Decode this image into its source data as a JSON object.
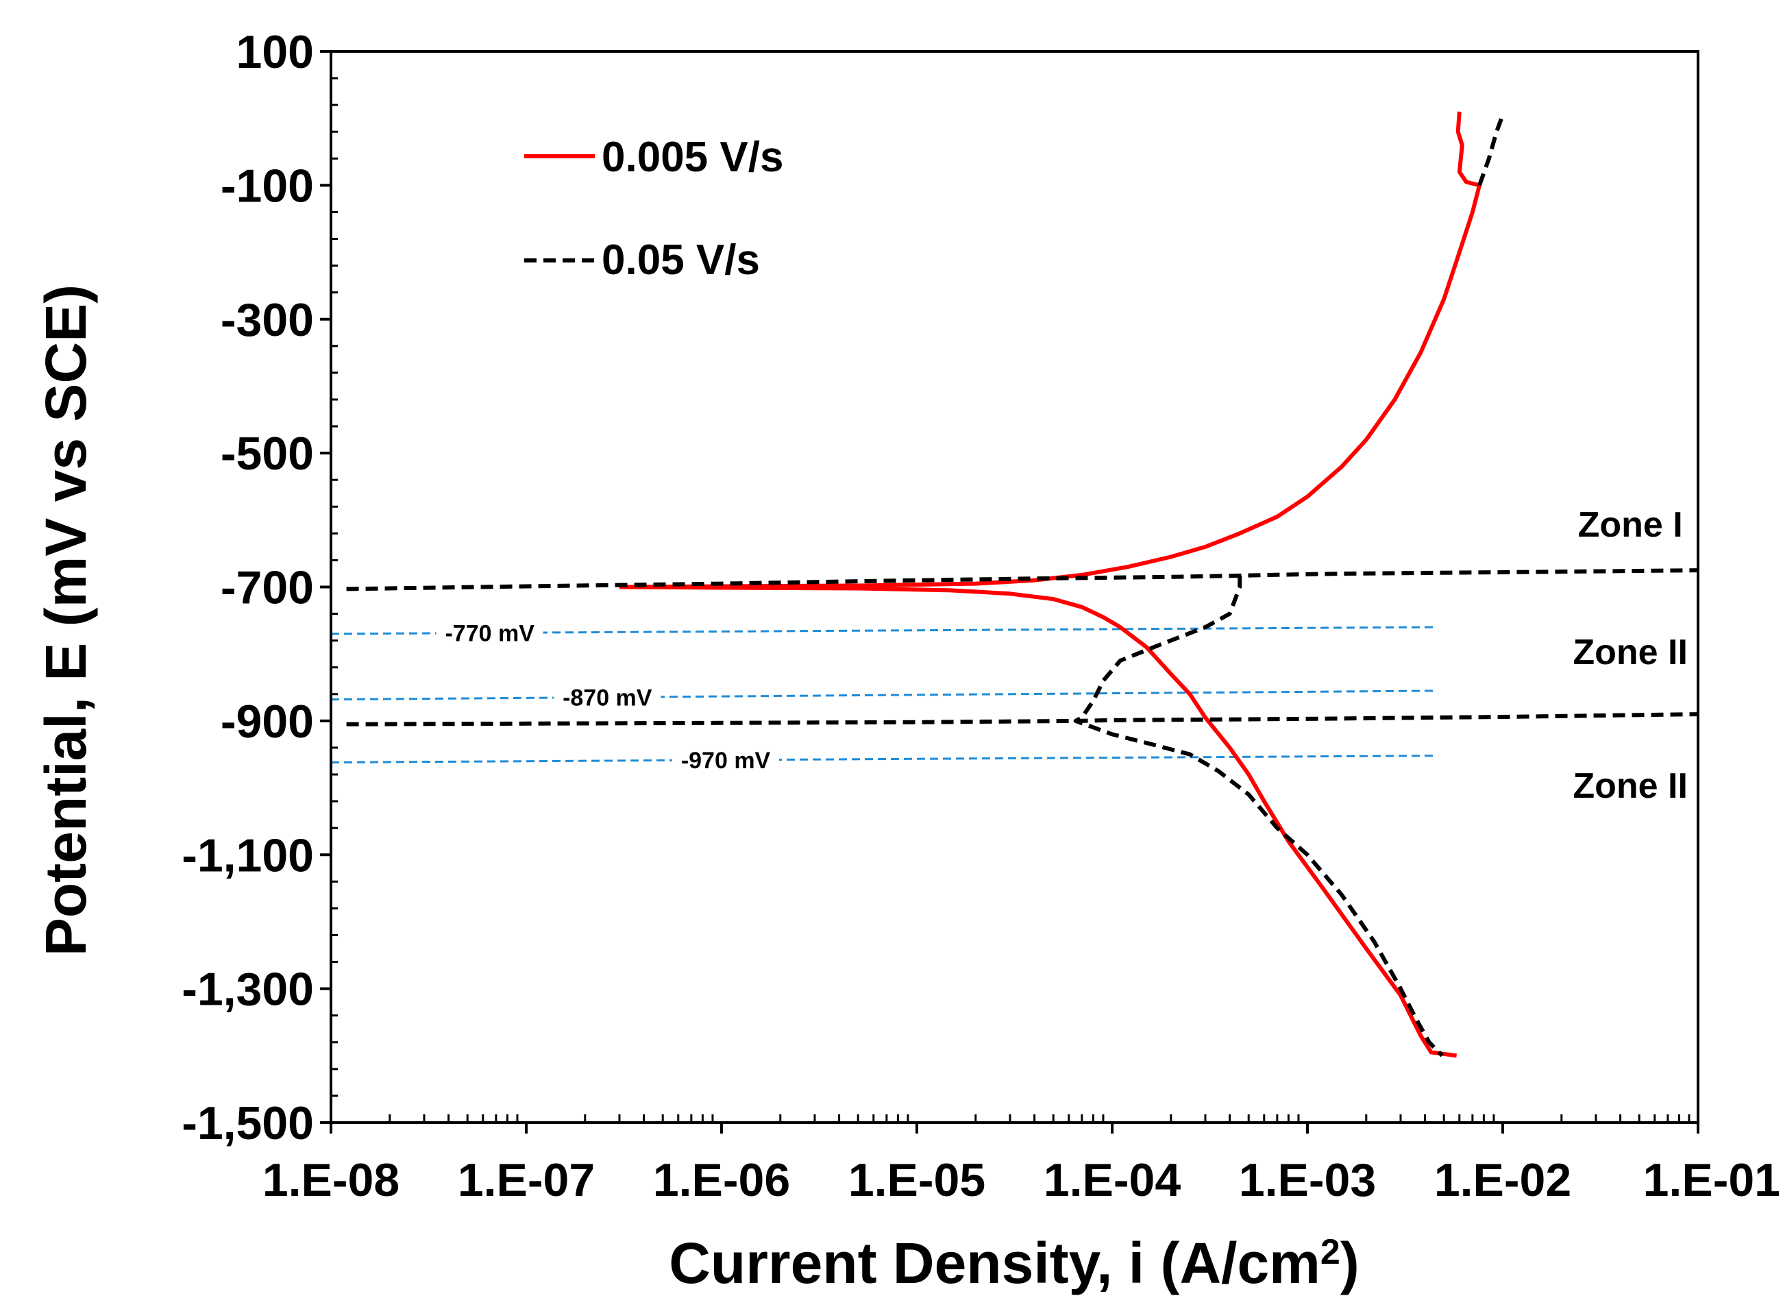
{
  "chart_data": {
    "type": "line",
    "xlabel": "Current Density, i (A/cm",
    "xlabel_sup": "2",
    "xlabel_end": ")",
    "ylabel": "Potential, E (mV vs SCE)",
    "x_scale": "log",
    "xlim": [
      1e-08,
      0.1
    ],
    "ylim": [
      -1500,
      100
    ],
    "x_tick_values": [
      1e-08,
      1e-07,
      1e-06,
      1e-05,
      0.0001,
      0.001,
      0.01,
      0.1
    ],
    "x_tick_labels": [
      "1.E-08",
      "1.E-07",
      "1.E-06",
      "1.E-05",
      "1.E-04",
      "1.E-03",
      "1.E-02",
      "1.E-01"
    ],
    "y_tick_values": [
      100,
      -100,
      -300,
      -500,
      -700,
      -900,
      -1100,
      -1300,
      -1500
    ],
    "y_tick_labels": [
      "100",
      "-100",
      "-300",
      "-500",
      "-700",
      "-900",
      "-1,100",
      "-1,300",
      "-1,500"
    ],
    "legend_position": "top-left",
    "series": [
      {
        "name": "0.005 V/s",
        "color": "#ff0000",
        "style": "solid",
        "points": [
          [
            3e-07,
            -700
          ],
          [
            1e-06,
            -701
          ],
          [
            5e-06,
            -702
          ],
          [
            1.5e-05,
            -705
          ],
          [
            3e-05,
            -710
          ],
          [
            5e-05,
            -718
          ],
          [
            7e-05,
            -730
          ],
          [
            9e-05,
            -745
          ],
          [
            0.00011,
            -760
          ],
          [
            0.00015,
            -790
          ],
          [
            0.0002,
            -830
          ],
          [
            0.00025,
            -860
          ],
          [
            0.0003,
            -895
          ],
          [
            0.0004,
            -940
          ],
          [
            0.0005,
            -980
          ],
          [
            0.0006,
            -1020
          ],
          [
            0.0008,
            -1080
          ],
          [
            0.0012,
            -1150
          ],
          [
            0.002,
            -1240
          ],
          [
            0.003,
            -1310
          ],
          [
            0.0038,
            -1370
          ],
          [
            0.0043,
            -1395
          ],
          [
            0.0058,
            -1400
          ],
          null,
          [
            3e-07,
            -700
          ],
          [
            1e-06,
            -699
          ],
          [
            5e-06,
            -698
          ],
          [
            2e-05,
            -695
          ],
          [
            4e-05,
            -690
          ],
          [
            7e-05,
            -682
          ],
          [
            0.00012,
            -670
          ],
          [
            0.0002,
            -655
          ],
          [
            0.0003,
            -640
          ],
          [
            0.00045,
            -620
          ],
          [
            0.0007,
            -595
          ],
          [
            0.001,
            -565
          ],
          [
            0.0015,
            -520
          ],
          [
            0.002,
            -480
          ],
          [
            0.0028,
            -420
          ],
          [
            0.0038,
            -350
          ],
          [
            0.005,
            -270
          ],
          [
            0.006,
            -200
          ],
          [
            0.007,
            -140
          ],
          [
            0.0076,
            -100
          ],
          [
            0.0065,
            -95
          ],
          [
            0.006,
            -80
          ],
          [
            0.0062,
            -40
          ],
          [
            0.0059,
            -20
          ],
          [
            0.006,
            10
          ]
        ]
      },
      {
        "name": "0.05 V/s",
        "color": "#000000",
        "style": "dashed",
        "points": [
          [
            1.2e-08,
            -703
          ],
          [
            1e-07,
            -699
          ],
          [
            1e-06,
            -695
          ],
          [
            1e-05,
            -690
          ],
          [
            5e-05,
            -687
          ],
          [
            0.0002,
            -685
          ],
          [
            0.00045,
            -683
          ],
          [
            0.00065,
            -682
          ],
          [
            0.0015,
            -680
          ],
          [
            0.01,
            -678
          ],
          [
            0.1,
            -675
          ],
          null,
          [
            0.00045,
            -683
          ],
          [
            0.00045,
            -700
          ],
          [
            0.0004,
            -740
          ],
          [
            0.0003,
            -760
          ],
          [
            0.00018,
            -785
          ],
          [
            0.00011,
            -810
          ],
          [
            9e-05,
            -840
          ],
          [
            8e-05,
            -870
          ],
          [
            7e-05,
            -895
          ],
          [
            6.5e-05,
            -900
          ],
          [
            0.0001,
            -920
          ],
          [
            0.00016,
            -935
          ],
          [
            0.00025,
            -950
          ],
          [
            0.00035,
            -975
          ],
          [
            0.0005,
            -1010
          ],
          [
            0.0007,
            -1060
          ],
          [
            0.001,
            -1100
          ],
          [
            0.0015,
            -1160
          ],
          [
            0.0022,
            -1230
          ],
          [
            0.003,
            -1300
          ],
          [
            0.0036,
            -1345
          ],
          [
            0.0042,
            -1380
          ],
          [
            0.0049,
            -1400
          ],
          null,
          [
            1.2e-08,
            -905
          ],
          [
            1e-07,
            -904
          ],
          [
            1e-06,
            -903
          ],
          [
            1e-05,
            -902
          ],
          [
            6.5e-05,
            -900
          ],
          [
            0.0001,
            -899
          ],
          [
            0.001,
            -897
          ],
          [
            0.01,
            -894
          ],
          [
            0.1,
            -890
          ],
          null,
          [
            0.0076,
            -100
          ],
          [
            0.0085,
            -60
          ],
          [
            0.0093,
            -20
          ],
          [
            0.01,
            5
          ]
        ]
      }
    ],
    "annotations": {
      "guides": [
        {
          "label": "-770 mV",
          "y_left": -770,
          "y_right": -760,
          "x_end": 0.0045,
          "label_x": 6.5e-08
        },
        {
          "label": "-870 mV",
          "y_left": -868,
          "y_right": -855,
          "x_end": 0.0045,
          "label_x": 2.6e-07
        },
        {
          "label": "-970 mV",
          "y_left": -962,
          "y_right": -952,
          "x_end": 0.0045,
          "label_x": 1.05e-06
        }
      ],
      "guide_color": "#1f8bd6",
      "zones": [
        {
          "label": "Zone I",
          "x": 0.045,
          "y": -625
        },
        {
          "label": "Zone II",
          "x": 0.045,
          "y": -815
        },
        {
          "label": "Zone II",
          "x": 0.045,
          "y": -1015
        }
      ]
    }
  }
}
